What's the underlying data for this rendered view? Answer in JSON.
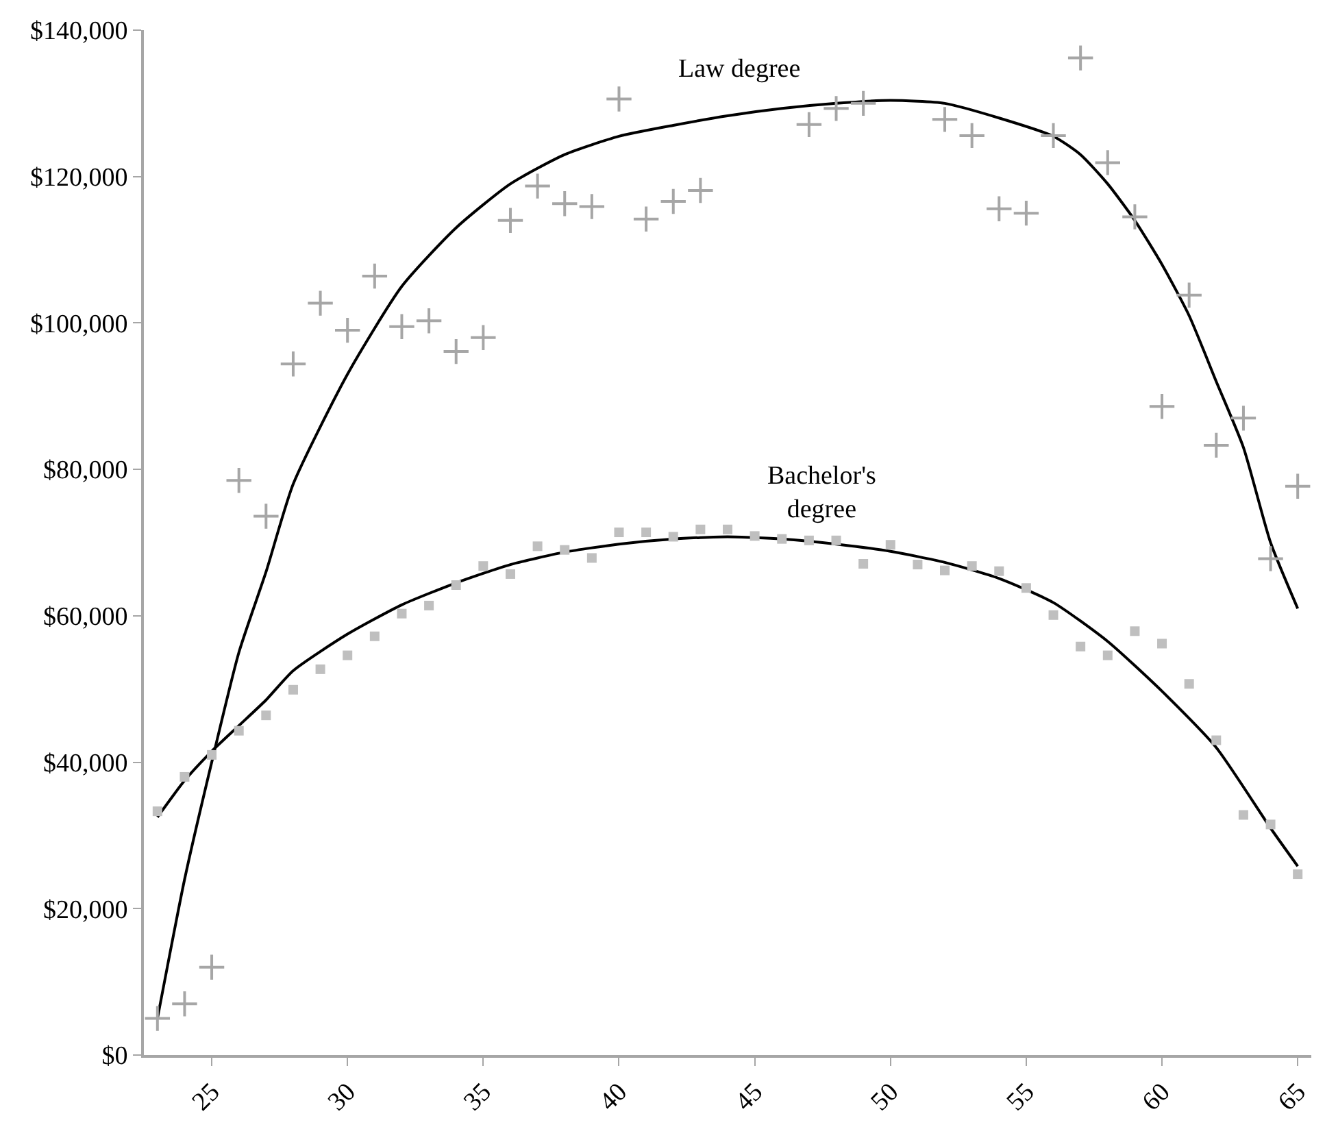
{
  "chart_data": {
    "type": "scatter",
    "x": [
      23,
      24,
      25,
      26,
      27,
      28,
      29,
      30,
      31,
      32,
      33,
      34,
      35,
      36,
      37,
      38,
      39,
      40,
      41,
      42,
      43,
      44,
      45,
      46,
      47,
      48,
      49,
      50,
      51,
      52,
      53,
      54,
      55,
      56,
      57,
      58,
      59,
      60,
      61,
      62,
      63,
      64,
      65
    ],
    "series": [
      {
        "marker": "cross",
        "color": "#a6a6a6",
        "values": [
          5000,
          7000,
          12000,
          78500,
          73600,
          94400,
          102700,
          99000,
          106400,
          99500,
          100300,
          96100,
          98000,
          114000,
          118700,
          116300,
          115900,
          130600,
          114200,
          116600,
          118100,
          null,
          null,
          null,
          127100,
          129300,
          130000,
          null,
          null,
          127800,
          125600,
          115600,
          115000,
          125600,
          136200,
          121900,
          114500,
          88600,
          103800,
          83300,
          87000,
          67800,
          77700
        ]
      },
      {
        "marker": "square",
        "color": "#bfbfbf",
        "values": [
          33300,
          38000,
          41000,
          44300,
          46400,
          49900,
          52700,
          54600,
          57200,
          60300,
          61400,
          64200,
          66800,
          65700,
          69500,
          69000,
          67900,
          71400,
          71400,
          70800,
          71800,
          71800,
          70900,
          70500,
          70300,
          70300,
          67100,
          69700,
          67000,
          66200,
          66800,
          66100,
          63800,
          60100,
          55800,
          54600,
          57900,
          56200,
          50700,
          43000,
          32800,
          31500,
          24700
        ]
      },
      {
        "type": "line",
        "color": "#000000",
        "x": [
          23,
          24,
          25,
          26,
          27,
          28,
          30,
          32,
          34,
          36,
          38,
          40,
          42,
          44,
          46,
          48,
          50,
          52,
          54,
          56,
          57,
          58,
          59,
          60,
          61,
          62,
          63,
          64,
          65
        ],
        "values": [
          5000,
          24000,
          40000,
          55000,
          66000,
          78000,
          93000,
          105000,
          113000,
          119000,
          123000,
          125500,
          127000,
          128300,
          129300,
          130000,
          130400,
          130000,
          128000,
          125500,
          123000,
          119000,
          114000,
          108000,
          101000,
          92000,
          83000,
          70000,
          61000
        ]
      },
      {
        "type": "line",
        "color": "#000000",
        "x": [
          23,
          24,
          25,
          26,
          27,
          28,
          30,
          32,
          34,
          36,
          38,
          40,
          42,
          44,
          46,
          48,
          50,
          52,
          54,
          56,
          58,
          60,
          62,
          64,
          65
        ],
        "values": [
          32500,
          37500,
          41500,
          45000,
          48500,
          52500,
          57500,
          61500,
          64500,
          67000,
          68700,
          69800,
          70500,
          70800,
          70500,
          69800,
          68800,
          67300,
          65100,
          61800,
          56500,
          49700,
          42000,
          31000,
          25800
        ]
      }
    ],
    "annotations": [
      "Law degree",
      "Bachelor's\ndegree"
    ],
    "xlim": [
      22.5,
      65.5
    ],
    "xticks": [
      25,
      30,
      35,
      40,
      45,
      50,
      55,
      60,
      65
    ],
    "ylim": [
      0,
      140000
    ],
    "yticks": [
      {
        "value": 0,
        "label": "$0"
      },
      {
        "value": 20000,
        "label": "$20,000"
      },
      {
        "value": 40000,
        "label": "$40,000"
      },
      {
        "value": 60000,
        "label": "$60,000"
      },
      {
        "value": 80000,
        "label": "$80,000"
      },
      {
        "value": 100000,
        "label": "$100,000"
      },
      {
        "value": 120000,
        "label": "$120,000"
      },
      {
        "value": 140000,
        "label": "$140,000"
      }
    ],
    "grid": false,
    "line_style": "solid"
  }
}
